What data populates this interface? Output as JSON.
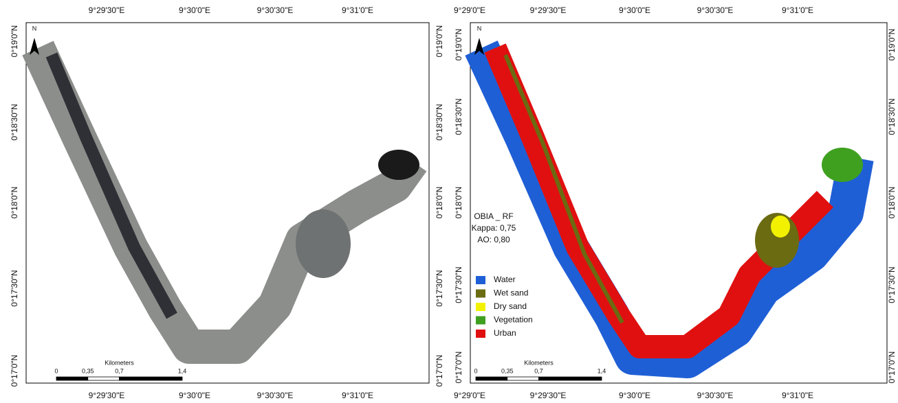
{
  "panels": [
    {
      "top_labels": [
        "9°29'30\"E",
        "9°30'0\"E",
        "9°30'30\"E",
        "9°31'0\"E"
      ],
      "bottom_labels": [
        "9°29'30\"E",
        "9°30'0\"E",
        "9°30'30\"E",
        "9°31'0\"E"
      ],
      "left_labels": [
        "0°19'0\"N",
        "0°18'30\"N",
        "0°18'0\"N",
        "0°17'30\"N",
        "0°17'0\"N"
      ],
      "right_labels": [
        "0°19'0\"N",
        "0°18'30\"N",
        "0°18'0\"N",
        "0°17'30\"N",
        "0°17'0\"N"
      ],
      "north": "N",
      "scale": {
        "title": "Kilometers",
        "labels": [
          "0",
          "0,35",
          "0,7",
          "1,4"
        ]
      }
    },
    {
      "top_labels": [
        "9°29'0\"E",
        "9°29'30\"E",
        "9°30'0\"E",
        "9°30'30\"E",
        "9°31'0\"E"
      ],
      "bottom_labels": [
        "9°29'0\"E",
        "9°29'30\"E",
        "9°30'0\"E",
        "9°30'30\"E",
        "9°31'0\"E"
      ],
      "left_labels": [
        "0°19'0\"N",
        "0°18'30\"N",
        "0°18'0\"N",
        "0°17'30\"N",
        "0°17'0\"N"
      ],
      "right_labels": [
        "0°19'0\"N",
        "0°18'30\"N",
        "0°18'0\"N",
        "0°17'30\"N",
        "0°17'0\"N"
      ],
      "north": "N",
      "scale": {
        "title": "Kilometers",
        "labels": [
          "0",
          "0,35",
          "0,7",
          "1,4"
        ]
      },
      "annotation": [
        "OBIA _ RF",
        "Kappa: 0,75",
        "AO: 0,80"
      ],
      "legend": [
        {
          "label": "Water",
          "color": "#1f5fd6"
        },
        {
          "label": "Wet sand",
          "color": "#6b6b12"
        },
        {
          "label": "Dry sand",
          "color": "#f2f200"
        },
        {
          "label": "Vegetation",
          "color": "#3fa020"
        },
        {
          "label": "Urban",
          "color": "#e01010"
        }
      ]
    }
  ]
}
